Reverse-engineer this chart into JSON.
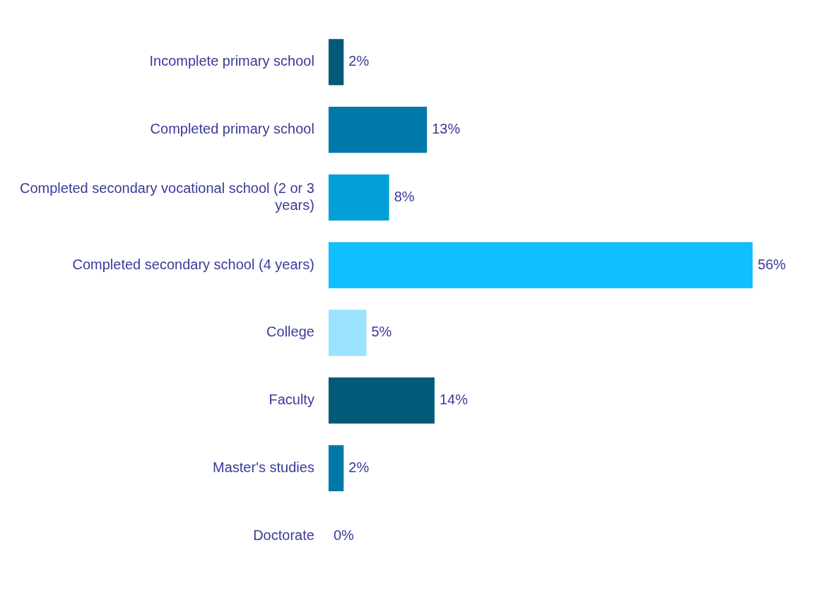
{
  "chart_data": {
    "type": "bar",
    "orientation": "horizontal",
    "categories": [
      "Incomplete primary school",
      "Completed primary school",
      "Completed secondary vocational school (2 or 3 years)",
      "Completed secondary school (4 years)",
      "College",
      "Faculty",
      "Master's studies",
      "Doctorate"
    ],
    "values": [
      2,
      13,
      8,
      56,
      5,
      14,
      2,
      0
    ],
    "value_labels": [
      "2%",
      "13%",
      "8%",
      "56%",
      "5%",
      "14%",
      "2%",
      "0%"
    ],
    "colors": [
      "#005a78",
      "#0079a8",
      "#009fd6",
      "#10bfff",
      "#9be3ff",
      "#005a78",
      "#0079a8",
      "#009fd6"
    ],
    "grid": false,
    "legend": false
  }
}
